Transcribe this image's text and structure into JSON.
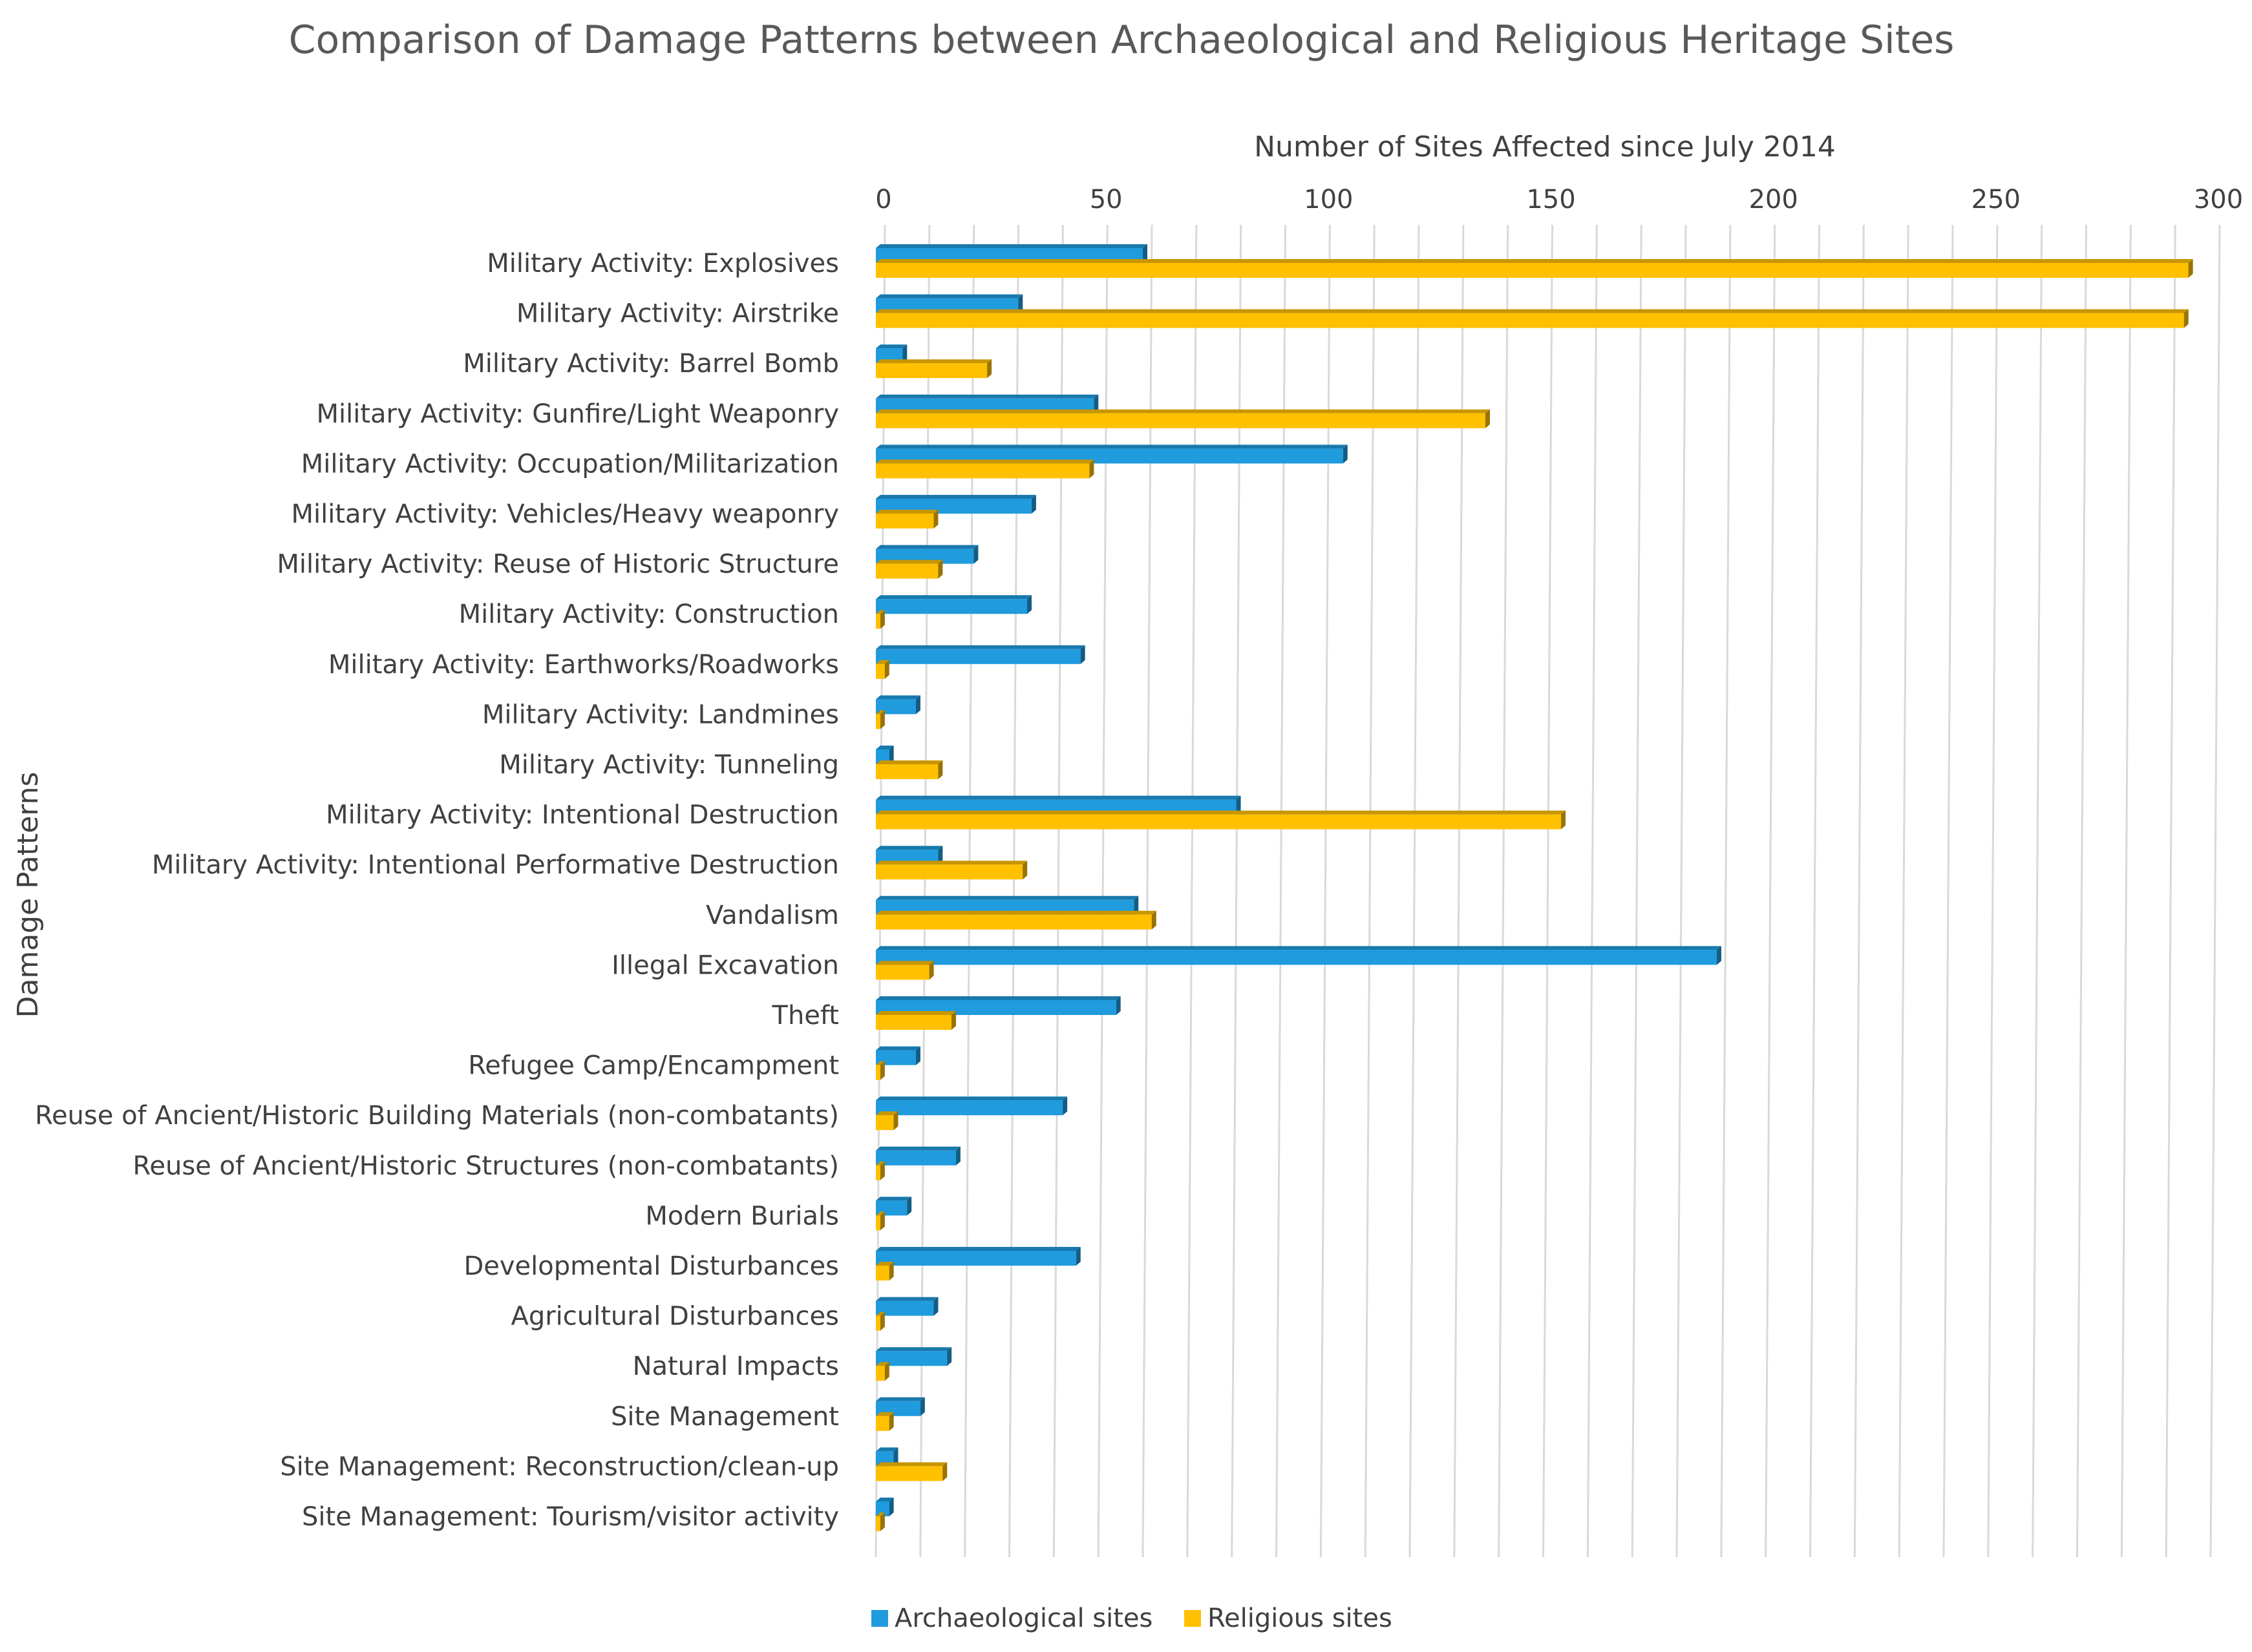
{
  "chart_data": {
    "type": "bar",
    "orientation": "horizontal",
    "title": "Comparison of Damage Patterns between Archaeological and Religious Heritage Sites",
    "xlabel": "Number of Sites Affected since July 2014",
    "ylabel": "Damage Patterns",
    "xlim": [
      0,
      300
    ],
    "xticks": [
      0,
      50,
      100,
      150,
      200,
      250,
      300
    ],
    "grid": true,
    "legend_position": "bottom",
    "categories": [
      "Military Activity: Explosives",
      "Military Activity: Airstrike",
      "Military Activity: Barrel Bomb",
      "Military Activity: Gunfire/Light Weaponry",
      "Military Activity: Occupation/Militarization",
      "Military Activity: Vehicles/Heavy weaponry",
      "Military Activity: Reuse of Historic Structure",
      "Military Activity: Construction",
      "Military Activity: Earthworks/Roadworks",
      "Military Activity: Landmines",
      "Military Activity: Tunneling",
      "Military Activity: Intentional Destruction",
      "Military Activity: Intentional Performative Destruction",
      "Vandalism",
      "Illegal Excavation",
      "Theft",
      "Refugee Camp/Encampment",
      "Reuse of Ancient/Historic Building Materials (non-combatants)",
      "Reuse of Ancient/Historic Structures (non-combatants)",
      "Modern Burials",
      "Developmental Disturbances",
      "Agricultural Disturbances",
      "Natural Impacts",
      "Site Management",
      "Site Management: Reconstruction/clean-up",
      "Site Management: Tourism/visitor activity"
    ],
    "series": [
      {
        "name": "Archaeological sites",
        "color": "#1f9bde",
        "values": [
          60,
          32,
          6,
          49,
          105,
          35,
          22,
          34,
          46,
          9,
          3,
          81,
          14,
          58,
          189,
          54,
          9,
          42,
          18,
          7,
          45,
          13,
          16,
          10,
          4,
          3
        ]
      },
      {
        "name": "Religious sites",
        "color": "#ffc000",
        "values": [
          295,
          294,
          25,
          137,
          48,
          13,
          14,
          1,
          2,
          1,
          14,
          154,
          33,
          62,
          12,
          17,
          1,
          4,
          1,
          1,
          3,
          1,
          2,
          3,
          15,
          1
        ]
      }
    ]
  }
}
